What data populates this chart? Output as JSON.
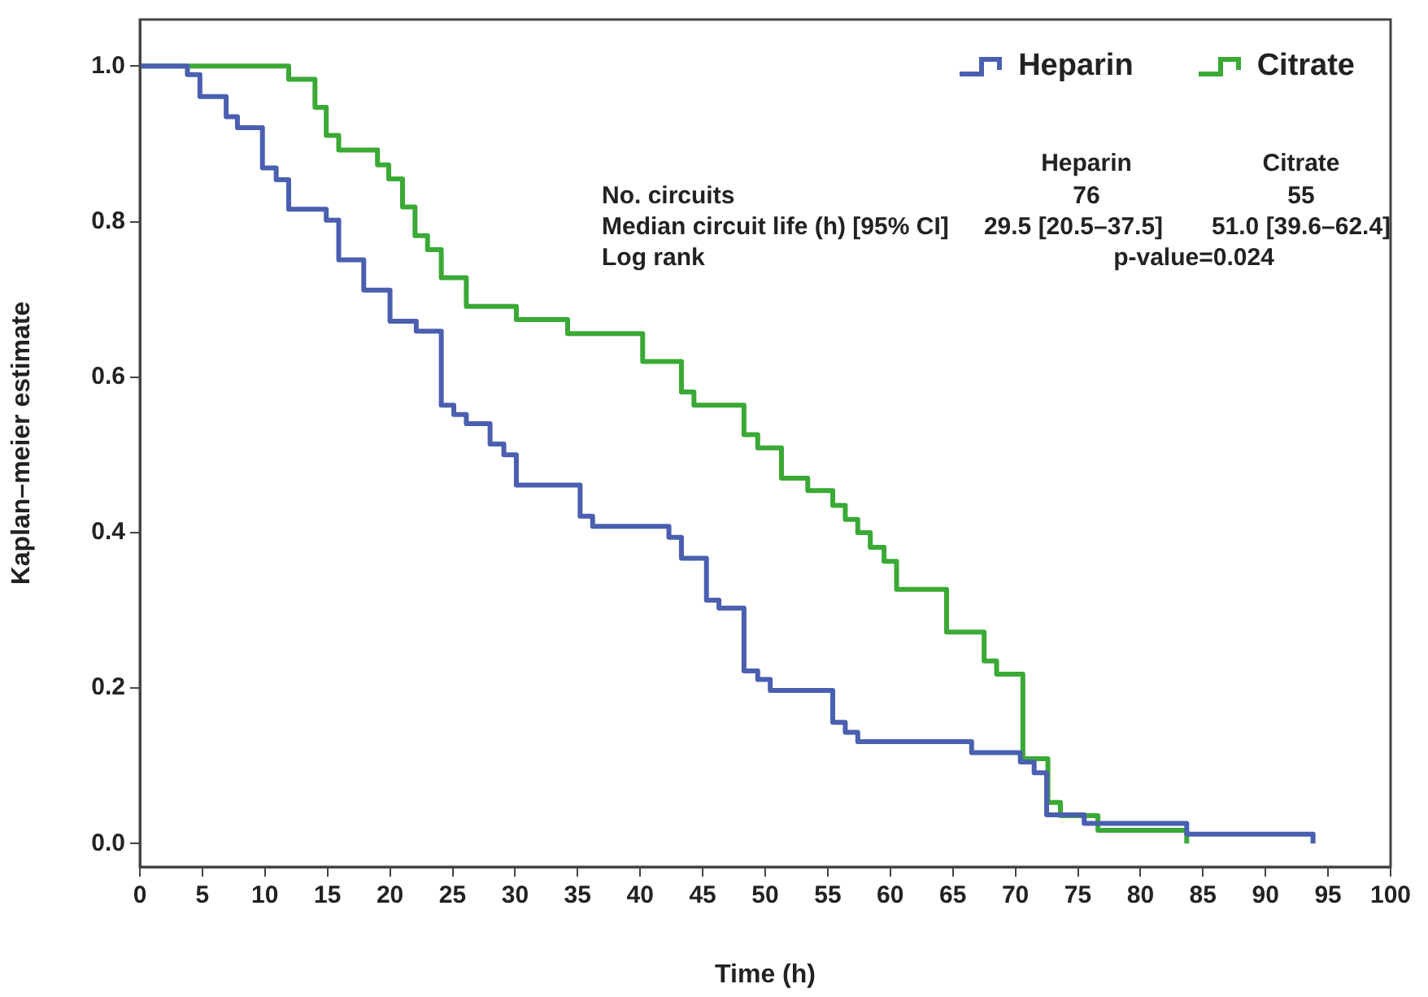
{
  "chart_data": {
    "type": "step",
    "xlabel": "Time (h)",
    "ylabel": "Kaplan–meier estimate",
    "xlim": [
      0,
      100
    ],
    "xticks": [
      0,
      5,
      10,
      15,
      20,
      25,
      30,
      35,
      40,
      45,
      50,
      55,
      60,
      65,
      70,
      75,
      80,
      85,
      90,
      95,
      100
    ],
    "ylim": [
      -0.03,
      1.06
    ],
    "yticks": [
      {
        "value": 0,
        "label": "0.0"
      },
      {
        "value": 0.2,
        "label": "0.2"
      },
      {
        "value": 0.4,
        "label": "0.4"
      },
      {
        "value": 0.6,
        "label": "0.6"
      },
      {
        "value": 0.8,
        "label": "0.8"
      },
      {
        "value": 1,
        "label": "1.0"
      }
    ],
    "grid": false,
    "legend": "top right",
    "series": [
      {
        "name": "Heparin",
        "color": "#4a5fb0",
        "x": [
          0,
          3.8,
          4.8,
          6.9,
          7.8,
          9.8,
          10.9,
          11.9,
          14.9,
          15.9,
          17.9,
          20.0,
          22.1,
          24.1,
          25.1,
          26.1,
          28.0,
          29.1,
          30.1,
          35.2,
          36.2,
          42.3,
          43.3,
          45.3,
          46.3,
          48.3,
          49.4,
          50.4,
          55.4,
          56.4,
          57.4,
          66.5,
          70.4,
          71.5,
          72.5,
          75.5,
          83.7,
          93.8,
          93.8
        ],
        "values": [
          1,
          0.989,
          0.961,
          0.935,
          0.921,
          0.869,
          0.854,
          0.816,
          0.802,
          0.751,
          0.712,
          0.672,
          0.659,
          0.564,
          0.552,
          0.54,
          0.514,
          0.5,
          0.461,
          0.421,
          0.408,
          0.394,
          0.367,
          0.313,
          0.303,
          0.222,
          0.211,
          0.197,
          0.156,
          0.143,
          0.131,
          0.117,
          0.105,
          0.091,
          0.037,
          0.026,
          0.012,
          0.012,
          0
        ]
      },
      {
        "name": "Citrate",
        "color": "#3aa935",
        "x": [
          0,
          11.9,
          14.0,
          14.9,
          15.9,
          19.0,
          19.9,
          21.0,
          22.0,
          23.0,
          24.1,
          26.1,
          30.1,
          34.2,
          40.2,
          43.3,
          44.3,
          48.3,
          49.4,
          51.3,
          53.4,
          55.4,
          56.4,
          57.4,
          58.4,
          59.5,
          60.5,
          64.5,
          67.5,
          68.5,
          70.6,
          72.6,
          73.6,
          76.6,
          83.7,
          83.7
        ],
        "values": [
          1,
          0.983,
          0.947,
          0.911,
          0.892,
          0.873,
          0.855,
          0.819,
          0.782,
          0.764,
          0.728,
          0.691,
          0.674,
          0.656,
          0.62,
          0.581,
          0.564,
          0.526,
          0.509,
          0.47,
          0.454,
          0.435,
          0.417,
          0.4,
          0.381,
          0.363,
          0.327,
          0.272,
          0.235,
          0.218,
          0.109,
          0.053,
          0.036,
          0.017,
          0.017,
          0
        ]
      }
    ],
    "annotations": [
      "Heparin",
      "Citrate",
      "No. circuits",
      "76",
      "55",
      "Median circuit life (h) [95% CI]",
      "29.5 [20.5–37.5]",
      "51.0 [39.6–62.4]",
      "Log rank",
      "p-value=0.024"
    ]
  }
}
